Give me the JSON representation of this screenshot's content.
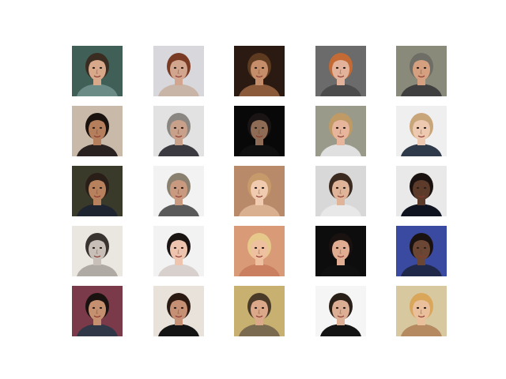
{
  "figure": {
    "background": "#ffffff",
    "grid": {
      "rows": 5,
      "cols": 5
    },
    "thumbnails": [
      {
        "row": 1,
        "col": 1,
        "bg": "#3f5f57",
        "skin": "#d7a88a",
        "hair": "#3b2c22",
        "shirt": "#6b8b87"
      },
      {
        "row": 1,
        "col": 2,
        "bg": "#d8d8dc",
        "skin": "#d2a58f",
        "hair": "#7a3b25",
        "shirt": "#c8b5a8"
      },
      {
        "row": 1,
        "col": 3,
        "bg": "#2a1a12",
        "skin": "#c58d6a",
        "hair": "#5d3a20",
        "shirt": "#8a5a3a"
      },
      {
        "row": 1,
        "col": 4,
        "bg": "#6b6b6b",
        "skin": "#e2b39a",
        "hair": "#c46a35",
        "shirt": "#4c4c4c"
      },
      {
        "row": 1,
        "col": 5,
        "bg": "#8a8a7a",
        "skin": "#d4a080",
        "hair": "#6e6e66",
        "shirt": "#3f3f3f"
      },
      {
        "row": 2,
        "col": 1,
        "bg": "#c9b9a8",
        "skin": "#b57e5c",
        "hair": "#1a120e",
        "shirt": "#2a2220"
      },
      {
        "row": 2,
        "col": 2,
        "bg": "#e2e2e2",
        "skin": "#c9a08a",
        "hair": "#8a8682",
        "shirt": "#3a3a40"
      },
      {
        "row": 2,
        "col": 3,
        "bg": "#080808",
        "skin": "#8e6b54",
        "hair": "#1a1414",
        "shirt": "#101010"
      },
      {
        "row": 2,
        "col": 4,
        "bg": "#9a9a8a",
        "skin": "#e7b59c",
        "hair": "#c09a65",
        "shirt": "#e0e0e0"
      },
      {
        "row": 2,
        "col": 5,
        "bg": "#efefef",
        "skin": "#ecc9b0",
        "hair": "#c9a57a",
        "shirt": "#2e3a4a"
      },
      {
        "row": 3,
        "col": 1,
        "bg": "#3a3a2a",
        "skin": "#b8815d",
        "hair": "#2a1f18",
        "shirt": "#1e2430"
      },
      {
        "row": 3,
        "col": 2,
        "bg": "#f2f2f2",
        "skin": "#c99a80",
        "hair": "#8a8070",
        "shirt": "#5a5a5a"
      },
      {
        "row": 3,
        "col": 3,
        "bg": "#b88a6a",
        "skin": "#f0cbb0",
        "hair": "#c69a6a",
        "shirt": "#d9b090"
      },
      {
        "row": 3,
        "col": 4,
        "bg": "#d8d8d8",
        "skin": "#dfb498",
        "hair": "#3a2a20",
        "shirt": "#e8e8e8"
      },
      {
        "row": 3,
        "col": 5,
        "bg": "#e9e9e9",
        "skin": "#5c3b2a",
        "hair": "#1a1210",
        "shirt": "#0f1320"
      },
      {
        "row": 4,
        "col": 1,
        "bg": "#eae6e0",
        "skin": "#c8c0b8",
        "hair": "#3a3430",
        "shirt": "#b0aaa4"
      },
      {
        "row": 4,
        "col": 2,
        "bg": "#f2f2f2",
        "skin": "#efc4ae",
        "hair": "#1a1412",
        "shirt": "#d8d0cc"
      },
      {
        "row": 4,
        "col": 3,
        "bg": "#d99a78",
        "skin": "#efc0a0",
        "hair": "#e6c98a",
        "shirt": "#c97f60"
      },
      {
        "row": 4,
        "col": 4,
        "bg": "#0d0d0d",
        "skin": "#e0ad92",
        "hair": "#1a1210",
        "shirt": "#101010"
      },
      {
        "row": 4,
        "col": 5,
        "bg": "#3a4aa0",
        "skin": "#6b4634",
        "hair": "#1a1210",
        "shirt": "#20284a"
      },
      {
        "row": 5,
        "col": 1,
        "bg": "#7a3a4a",
        "skin": "#c49070",
        "hair": "#1a1210",
        "shirt": "#303848"
      },
      {
        "row": 5,
        "col": 2,
        "bg": "#e8e2da",
        "skin": "#c69074",
        "hair": "#2a1a12",
        "shirt": "#141414"
      },
      {
        "row": 5,
        "col": 3,
        "bg": "#c8b070",
        "skin": "#dba88a",
        "hair": "#4a3a28",
        "shirt": "#7a6a50"
      },
      {
        "row": 5,
        "col": 4,
        "bg": "#f5f5f5",
        "skin": "#dcae94",
        "hair": "#2a201a",
        "shirt": "#141414"
      },
      {
        "row": 5,
        "col": 5,
        "bg": "#d8c8a0",
        "skin": "#eabf9c",
        "hair": "#d9a65a",
        "shirt": "#b58a60"
      }
    ]
  }
}
